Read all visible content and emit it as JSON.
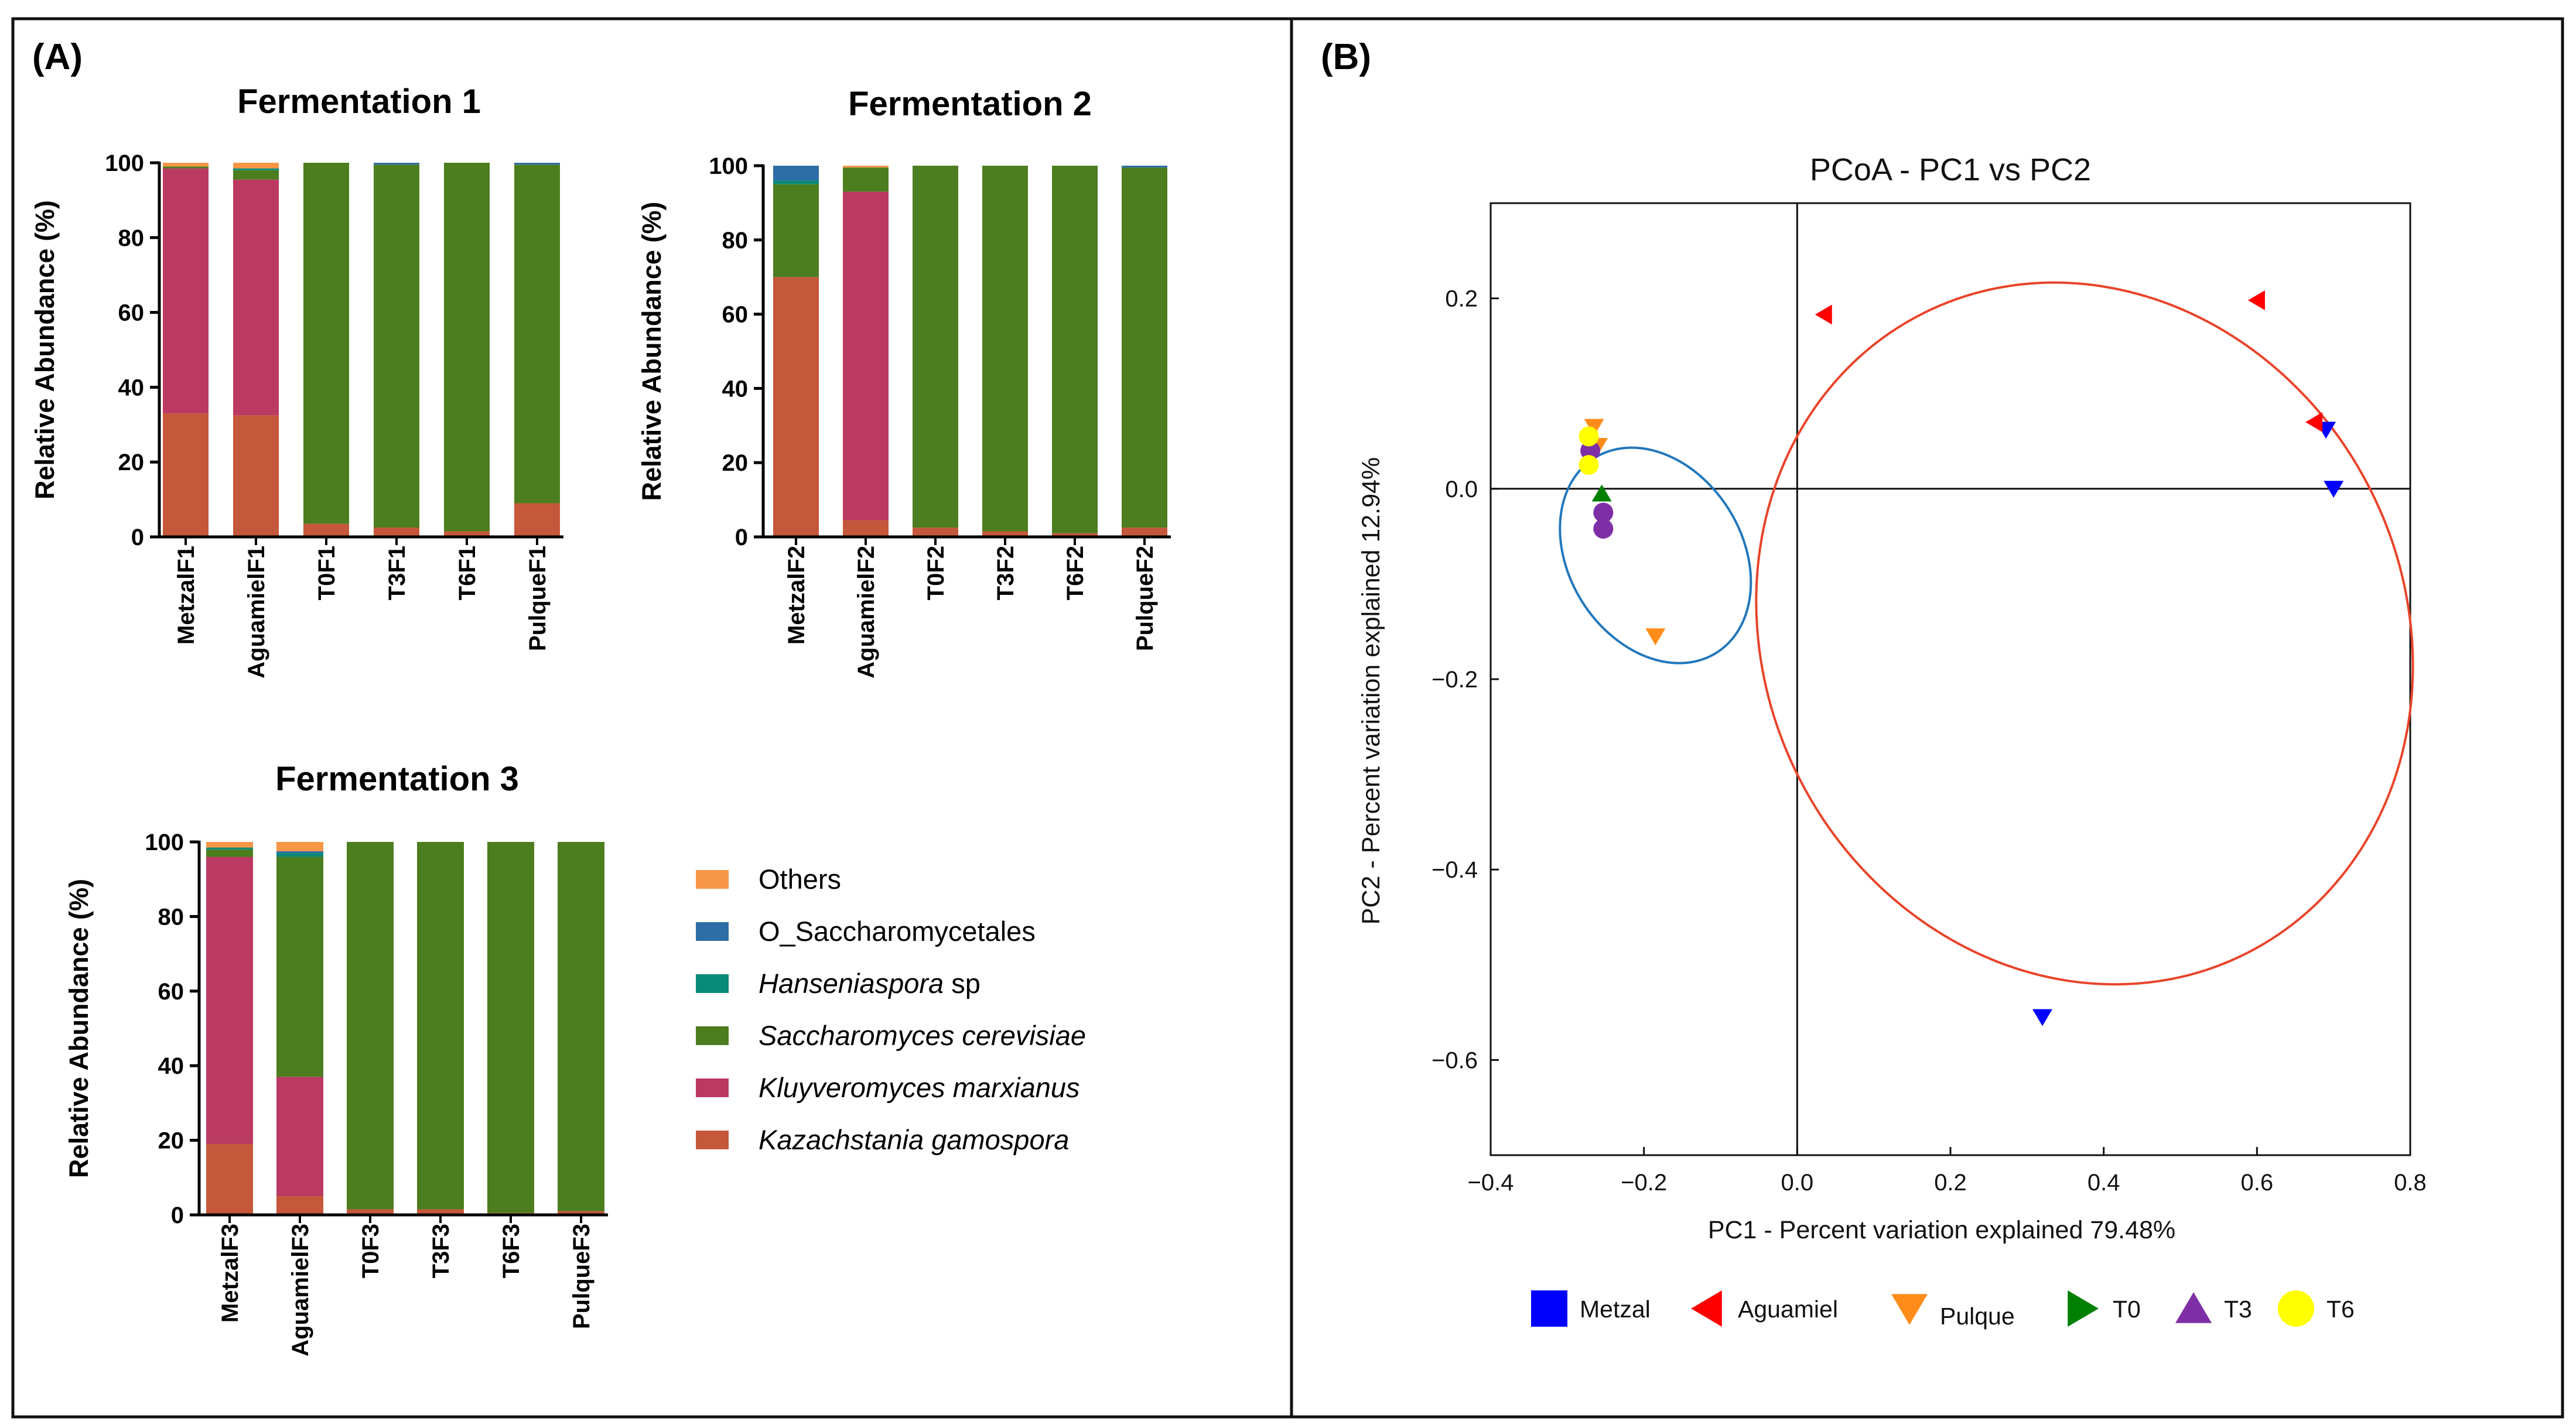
{
  "panels": {
    "a": "(A)",
    "b": "(B)"
  },
  "colors": {
    "Others": "#f79646",
    "O_Saccharomycetales": "#2e6ea6",
    "Hanseniaspora": "#0a8a78",
    "Saccharomyces": "#4c7d1e",
    "Kluyveromyces": "#bb3a62",
    "Kazachstania": "#c5573a",
    "Metzal": "#0000ff",
    "Aguamiel": "#ff0000",
    "Pulque": "#ff8c1a",
    "T0": "#008000",
    "T3": "#7f2fa6",
    "T6": "#ffff00",
    "ellipse_red": "#e8442a",
    "ellipse_blue": "#2277bb"
  },
  "stack_legend": [
    {
      "key": "Others",
      "label": "Others",
      "rest": ""
    },
    {
      "key": "O_Saccharomycetales",
      "label": "O_Saccharomycetales",
      "rest": ""
    },
    {
      "key": "Hanseniaspora",
      "label": "Hanseniaspora",
      "rest": " sp"
    },
    {
      "key": "Saccharomyces",
      "label": "Saccharomyces cerevisiae",
      "rest": ""
    },
    {
      "key": "Kluyveromyces",
      "label": "Kluyveromyces marxianus",
      "rest": ""
    },
    {
      "key": "Kazachstania",
      "label": "Kazachstania gamospora",
      "rest": ""
    }
  ],
  "chart_data": [
    {
      "type": "bar",
      "stacked": true,
      "title": "Fermentation 1",
      "ylabel": "Relative Abundance (%)",
      "ylim": [
        0,
        100
      ],
      "yticks": [
        0,
        20,
        40,
        60,
        80,
        100
      ],
      "categories": [
        "MetzalF1",
        "AguamielF1",
        "T0F1",
        "T3F1",
        "T6F1",
        "PulqueF1"
      ],
      "series": [
        {
          "name": "Kazachstania gamospora",
          "key": "Kazachstania",
          "values": [
            33,
            32.5,
            3.5,
            2.5,
            1.5,
            9
          ]
        },
        {
          "name": "Kluyveromyces marxianus",
          "key": "Kluyveromyces",
          "values": [
            65.5,
            63,
            0,
            0,
            0,
            0
          ]
        },
        {
          "name": "Saccharomyces cerevisiae",
          "key": "Saccharomyces",
          "values": [
            0.5,
            2.5,
            96.5,
            97,
            98.5,
            90.5
          ]
        },
        {
          "name": "Hanseniaspora sp",
          "key": "Hanseniaspora",
          "values": [
            0,
            0.5,
            0,
            0,
            0,
            0
          ]
        },
        {
          "name": "O_Saccharomycetales",
          "key": "O_Saccharomycetales",
          "values": [
            0,
            0,
            0,
            0.5,
            0,
            0.5
          ]
        },
        {
          "name": "Others",
          "key": "Others",
          "values": [
            1,
            1.5,
            0,
            0,
            0,
            0
          ]
        }
      ]
    },
    {
      "type": "bar",
      "stacked": true,
      "title": "Fermentation 2",
      "ylabel": "Relative Abundance (%)",
      "ylim": [
        0,
        100
      ],
      "yticks": [
        0,
        20,
        40,
        60,
        80,
        100
      ],
      "categories": [
        "MetzalF2",
        "AguamielF2",
        "T0F2",
        "T3F2",
        "T6F2",
        "PulqueF2"
      ],
      "series": [
        {
          "name": "Kazachstania gamospora",
          "key": "Kazachstania",
          "values": [
            70,
            4.5,
            2.5,
            1.5,
            1,
            2.5
          ]
        },
        {
          "name": "Kluyveromyces marxianus",
          "key": "Kluyveromyces",
          "values": [
            0,
            88.5,
            0,
            0,
            0,
            0
          ]
        },
        {
          "name": "Saccharomyces cerevisiae",
          "key": "Saccharomyces",
          "values": [
            25,
            6.5,
            97.5,
            98.5,
            99,
            97
          ]
        },
        {
          "name": "Hanseniaspora sp",
          "key": "Hanseniaspora",
          "values": [
            1,
            0,
            0,
            0,
            0,
            0
          ]
        },
        {
          "name": "O_Saccharomycetales",
          "key": "O_Saccharomycetales",
          "values": [
            4,
            0,
            0,
            0,
            0,
            0.5
          ]
        },
        {
          "name": "Others",
          "key": "Others",
          "values": [
            0,
            0.5,
            0,
            0,
            0,
            0
          ]
        }
      ]
    },
    {
      "type": "bar",
      "stacked": true,
      "title": "Fermentation 3",
      "ylabel": "Relative Abundance (%)",
      "ylim": [
        0,
        100
      ],
      "yticks": [
        0,
        20,
        40,
        60,
        80,
        100
      ],
      "categories": [
        "MetzalF3",
        "AguamielF3",
        "T0F3",
        "T3F3",
        "T6F3",
        "PulqueF3"
      ],
      "series": [
        {
          "name": "Kazachstania gamospora",
          "key": "Kazachstania",
          "values": [
            19,
            5,
            1.5,
            1.5,
            0.5,
            1
          ]
        },
        {
          "name": "Kluyveromyces marxianus",
          "key": "Kluyveromyces",
          "values": [
            77,
            32,
            0,
            0,
            0,
            0
          ]
        },
        {
          "name": "Saccharomyces cerevisiae",
          "key": "Saccharomyces",
          "values": [
            2,
            59,
            98.5,
            98.5,
            99.5,
            99
          ]
        },
        {
          "name": "Hanseniaspora sp",
          "key": "Hanseniaspora",
          "values": [
            0.5,
            1,
            0,
            0,
            0,
            0
          ]
        },
        {
          "name": "O_Saccharomycetales",
          "key": "O_Saccharomycetales",
          "values": [
            0,
            0.5,
            0,
            0,
            0,
            0
          ]
        },
        {
          "name": "Others",
          "key": "Others",
          "values": [
            1.5,
            2.5,
            0,
            0,
            0,
            0
          ]
        }
      ]
    },
    {
      "type": "scatter",
      "title": "PCoA - PC1 vs PC2",
      "xlabel": "PC1 - Percent variation explained 79.48%",
      "ylabel": "PC2 - Percent variation explained 12.94%",
      "xlim": [
        -0.4,
        0.8
      ],
      "ylim": [
        -0.7,
        0.3
      ],
      "xticks": [
        -0.4,
        -0.2,
        0.0,
        0.2,
        0.4,
        0.6,
        0.8
      ],
      "xtick_labels": [
        "−0.4",
        "−0.2",
        "0.0",
        "0.2",
        "0.4",
        "0.6",
        "0.8"
      ],
      "yticks": [
        0.2,
        0.0,
        -0.2,
        -0.4,
        -0.6
      ],
      "ytick_labels": [
        "0.2",
        "0.0",
        "−0.2",
        "−0.4",
        "−0.6"
      ],
      "groups": [
        {
          "name": "Metzal",
          "key": "Metzal",
          "marker": "triangle-down",
          "points": [
            [
              0.69,
              0.062
            ],
            [
              0.7,
              0.0
            ],
            [
              0.32,
              -0.555
            ]
          ]
        },
        {
          "name": "Aguamiel",
          "key": "Aguamiel",
          "marker": "triangle-left",
          "points": [
            [
              0.035,
              0.183
            ],
            [
              0.6,
              0.198
            ],
            [
              0.675,
              0.07
            ]
          ]
        },
        {
          "name": "Pulque",
          "key": "Pulque",
          "marker": "triangle-down",
          "points": [
            [
              -0.265,
              0.065
            ],
            [
              -0.26,
              0.045
            ],
            [
              -0.185,
              -0.155
            ]
          ]
        },
        {
          "name": "T0",
          "key": "T0",
          "marker": "triangle-up",
          "points": [
            [
              -0.255,
              -0.005
            ]
          ]
        },
        {
          "name": "T3",
          "key": "T3",
          "marker": "circle",
          "points": [
            [
              -0.27,
              0.04
            ],
            [
              -0.253,
              -0.025
            ],
            [
              -0.253,
              -0.042
            ]
          ]
        },
        {
          "name": "T6",
          "key": "T6",
          "marker": "circle",
          "points": [
            [
              -0.272,
              0.055
            ],
            [
              -0.272,
              0.025
            ]
          ]
        }
      ],
      "ellipses": [
        {
          "color": "ellipse_blue",
          "center": [
            -0.185,
            -0.07
          ],
          "radii": [
            0.15,
            0.091
          ],
          "angle_deg": 58
        },
        {
          "color": "ellipse_red",
          "center": [
            0.375,
            -0.152
          ],
          "radii": [
            0.468,
            0.336
          ],
          "angle_deg": 63
        }
      ],
      "legend": [
        {
          "key": "Metzal",
          "label": "Metzal",
          "marker": "square"
        },
        {
          "key": "Aguamiel",
          "label": "Aguamiel",
          "marker": "triangle-left"
        },
        {
          "key": "Pulque",
          "label": "Pulque",
          "marker": "triangle-down"
        },
        {
          "key": "T0",
          "label": "T0",
          "marker": "triangle-right"
        },
        {
          "key": "T3",
          "label": "T3",
          "marker": "triangle-up"
        },
        {
          "key": "T6",
          "label": "T6",
          "marker": "circle"
        }
      ]
    }
  ]
}
